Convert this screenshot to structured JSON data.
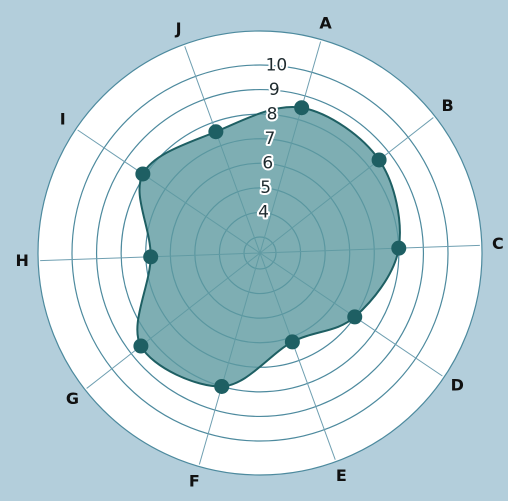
{
  "chart_data": {
    "type": "radar",
    "axes": [
      "A",
      "B",
      "C",
      "D",
      "E",
      "F",
      "G",
      "H",
      "I",
      "J"
    ],
    "values": [
      8.5,
      8.5,
      8.0,
      7.0,
      6.2,
      8.0,
      8.5,
      6.8,
      8.1,
      7.6
    ],
    "rlim": [
      3,
      10
    ],
    "ticks": [
      4,
      5,
      6,
      7,
      8,
      9,
      10
    ],
    "grid": true,
    "colors": {
      "background": "#b3cedb",
      "plot_background": "#ffffff",
      "fill": "#5e9aa0",
      "line": "#1e5f63",
      "marker": "#1e5f63",
      "grid": "#4d8a9e"
    }
  }
}
